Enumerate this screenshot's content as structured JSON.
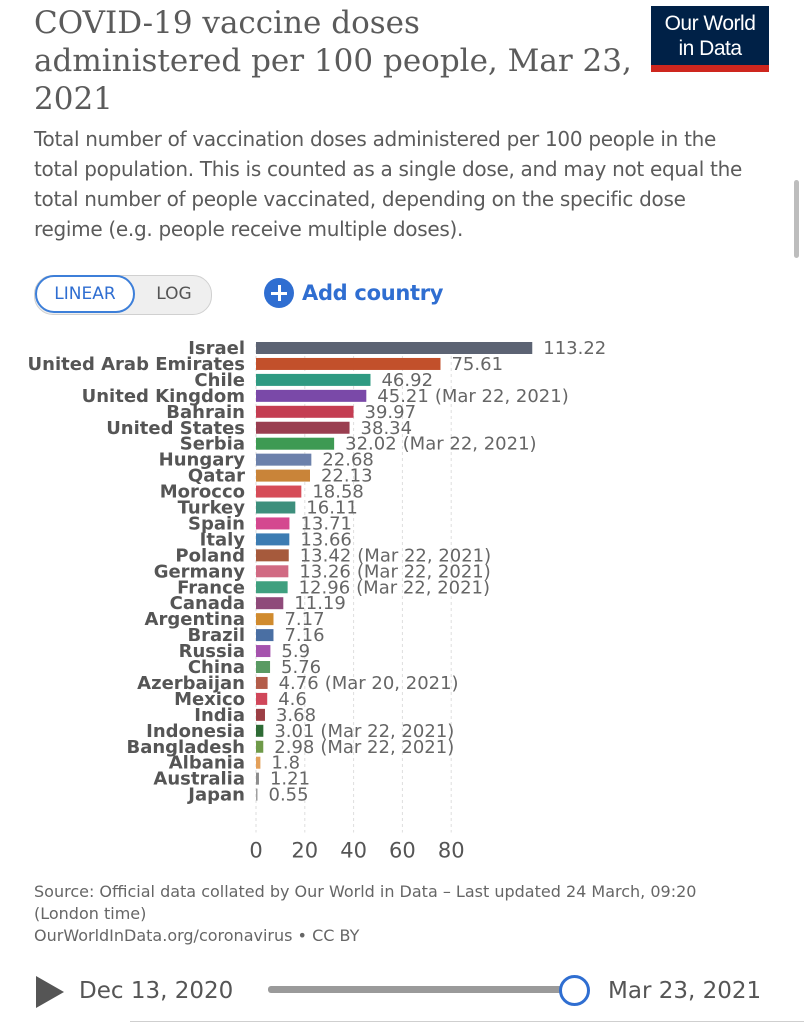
{
  "header": {
    "title": "COVID-19 vaccine doses administered per 100 people, Mar 23, 2021",
    "subtitle": "Total number of vaccination doses administered per 100 people in the total population. This is counted as a single dose, and may not equal the total number of people vaccinated, depending on the specific dose regime (e.g. people receive multiple doses).",
    "logo_line1": "Our World",
    "logo_line2": "in Data"
  },
  "controls": {
    "linear_label": "LINEAR",
    "log_label": "LOG",
    "add_country_label": "Add country"
  },
  "chart_data": {
    "type": "bar",
    "orientation": "horizontal",
    "title": "COVID-19 vaccine doses administered per 100 people, Mar 23, 2021",
    "scale": "linear",
    "xlim": [
      0,
      113.22
    ],
    "xticks": [
      0,
      20,
      40,
      60,
      80
    ],
    "grid": true,
    "categories": [
      "Israel",
      "United Arab Emirates",
      "Chile",
      "United Kingdom",
      "Bahrain",
      "United States",
      "Serbia",
      "Hungary",
      "Qatar",
      "Morocco",
      "Turkey",
      "Spain",
      "Italy",
      "Poland",
      "Germany",
      "France",
      "Canada",
      "Argentina",
      "Brazil",
      "Russia",
      "China",
      "Azerbaijan",
      "Mexico",
      "India",
      "Indonesia",
      "Bangladesh",
      "Albania",
      "Australia",
      "Japan"
    ],
    "values": [
      113.22,
      75.61,
      46.92,
      45.21,
      39.97,
      38.34,
      32.02,
      22.68,
      22.13,
      18.58,
      16.11,
      13.71,
      13.66,
      13.42,
      13.26,
      12.96,
      11.19,
      7.17,
      7.16,
      5.9,
      5.76,
      4.76,
      4.6,
      3.68,
      3.01,
      2.98,
      1.8,
      1.21,
      0.55
    ],
    "value_labels": [
      "113.22",
      "75.61",
      "46.92",
      "45.21",
      "39.97",
      "38.34",
      "32.02",
      "22.68",
      "22.13",
      "18.58",
      "16.11",
      "13.71",
      "13.66",
      "13.42",
      "13.26",
      "12.96",
      "11.19",
      "7.17",
      "7.16",
      "5.9",
      "5.76",
      "4.76",
      "4.6",
      "3.68",
      "3.01",
      "2.98",
      "1.8",
      "1.21",
      "0.55"
    ],
    "date_notes": [
      "",
      "",
      "",
      "(Mar 22, 2021)",
      "",
      "",
      "(Mar 22, 2021)",
      "",
      "",
      "",
      "",
      "",
      "",
      "(Mar 22, 2021)",
      "(Mar 22, 2021)",
      "(Mar 22, 2021)",
      "",
      "",
      "",
      "",
      "",
      "(Mar 20, 2021)",
      "",
      "",
      "(Mar 22, 2021)",
      "(Mar 22, 2021)",
      "",
      "",
      ""
    ],
    "colors": [
      "#5c6373",
      "#c2502b",
      "#2f9a82",
      "#7a49a8",
      "#c43d52",
      "#9a3e50",
      "#3e9a53",
      "#6c81ab",
      "#c98439",
      "#d64c58",
      "#3d8f7c",
      "#d4488f",
      "#3c7cb2",
      "#a65a3c",
      "#d16a83",
      "#3fa07f",
      "#8f4a7a",
      "#d08b2e",
      "#4a6fa3",
      "#a553ad",
      "#5a9a63",
      "#b35d4a",
      "#d0475a",
      "#9c3f45",
      "#2e6b35",
      "#6f9a49",
      "#e3a05a",
      "#8c8c8c",
      "#a0a0a0"
    ]
  },
  "footer": {
    "source_line": "Source: Official data collated by Our World in Data – Last updated 24 March, 09:20 (London time)",
    "url_line": "OurWorldInData.org/coronavirus • CC BY",
    "start_date": "Dec 13, 2020",
    "end_date": "Mar 23, 2021"
  }
}
